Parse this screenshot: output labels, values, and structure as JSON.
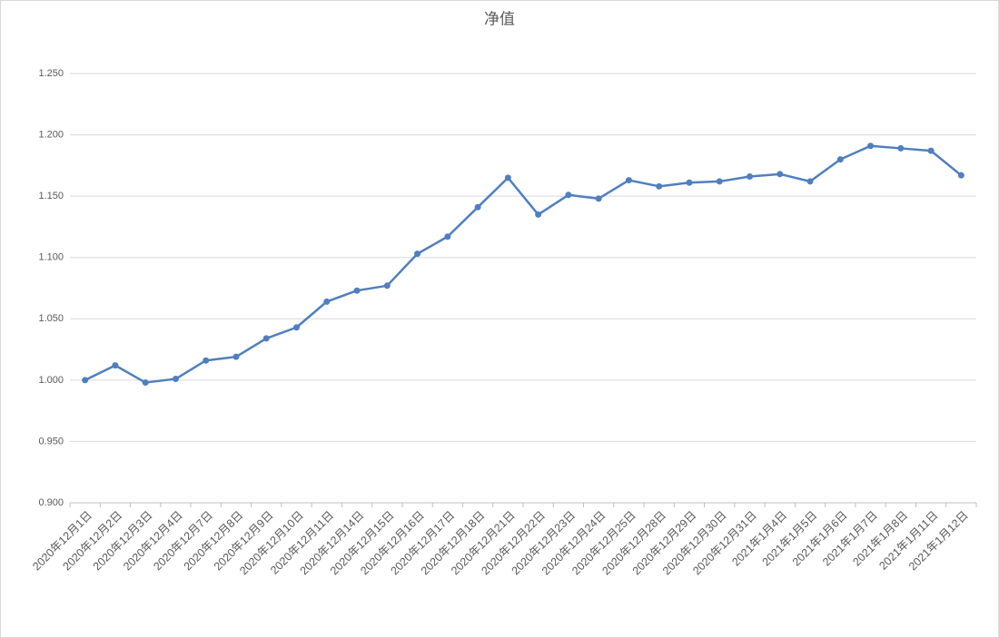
{
  "chart_data": {
    "type": "line",
    "title": "净值",
    "categories": [
      "2020年12月1日",
      "2020年12月2日",
      "2020年12月3日",
      "2020年12月4日",
      "2020年12月7日",
      "2020年12月8日",
      "2020年12月9日",
      "2020年12月10日",
      "2020年12月11日",
      "2020年12月14日",
      "2020年12月15日",
      "2020年12月16日",
      "2020年12月17日",
      "2020年12月18日",
      "2020年12月21日",
      "2020年12月22日",
      "2020年12月23日",
      "2020年12月24日",
      "2020年12月25日",
      "2020年12月28日",
      "2020年12月29日",
      "2020年12月30日",
      "2020年12月31日",
      "2021年1月4日",
      "2021年1月5日",
      "2021年1月6日",
      "2021年1月7日",
      "2021年1月8日",
      "2021年1月11日",
      "2021年1月12日"
    ],
    "values": [
      1.0,
      1.012,
      0.998,
      1.001,
      1.016,
      1.019,
      1.034,
      1.043,
      1.064,
      1.073,
      1.077,
      1.103,
      1.117,
      1.141,
      1.165,
      1.135,
      1.151,
      1.148,
      1.163,
      1.158,
      1.161,
      1.162,
      1.166,
      1.168,
      1.162,
      1.18,
      1.191,
      1.189,
      1.187,
      1.167
    ],
    "color": "#4f7fbf",
    "ylim": [
      0.9,
      1.25
    ],
    "yticks": [
      {
        "value": 0.9,
        "label": "0.900"
      },
      {
        "value": 0.95,
        "label": "0.950"
      },
      {
        "value": 1.0,
        "label": "1.000"
      },
      {
        "value": 1.05,
        "label": "1.050"
      },
      {
        "value": 1.1,
        "label": "1.100"
      },
      {
        "value": 1.15,
        "label": "1.150"
      },
      {
        "value": 1.2,
        "label": "1.200"
      },
      {
        "value": 1.25,
        "label": "1.250"
      }
    ],
    "grid": true
  }
}
